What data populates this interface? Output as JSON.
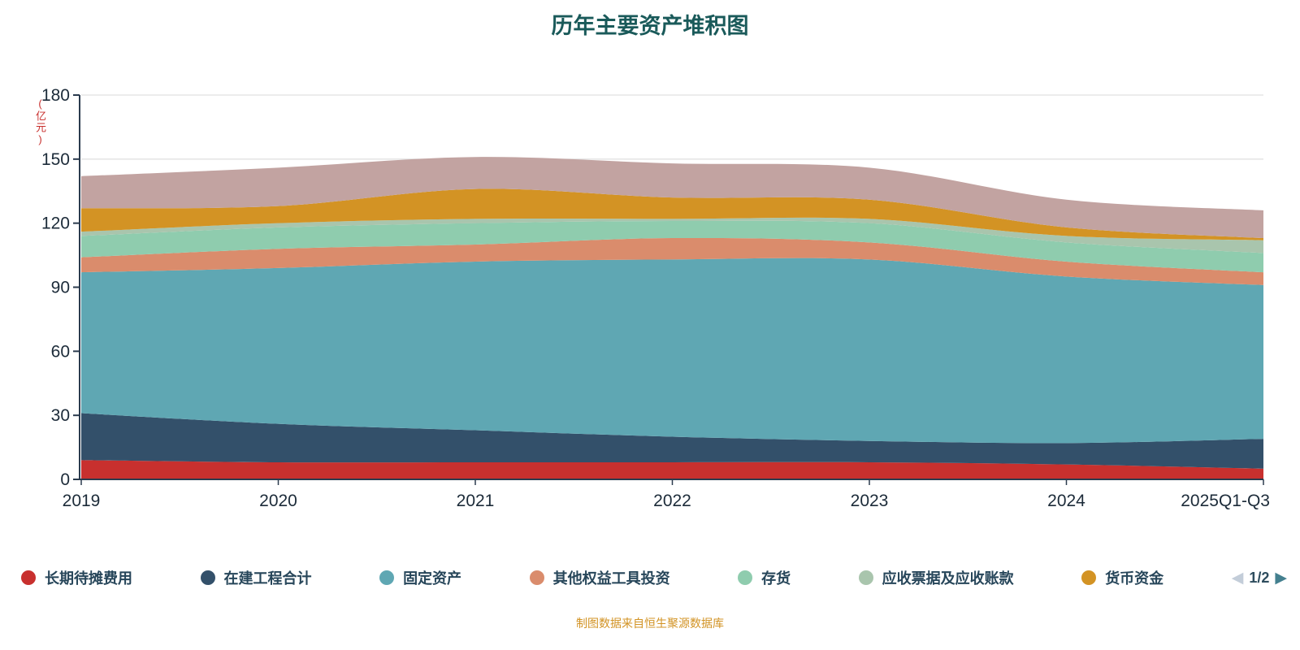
{
  "title": "历年主要资产堆积图",
  "caption": "制图数据来自恒生聚源数据库",
  "y_axis": {
    "name": "(亿元)",
    "ticks": [
      0,
      30,
      60,
      90,
      120,
      150,
      180
    ]
  },
  "legend": {
    "pagination": {
      "current": "1/2"
    }
  },
  "colors": {
    "title": "#1a5a5a",
    "axis_label": "#1c2b39",
    "axis_line": "#2b3b4e",
    "grid_line": "#d8d8d8",
    "caption": "#d29324",
    "y_axis_name": "#c8302e",
    "legend_text": "#27465a",
    "pager_prev": "#c3cdd9",
    "pager_next": "#44808f",
    "pager_text": "#2e4d5e"
  },
  "chart_data": {
    "type": "area",
    "stacked": true,
    "title": "历年主要资产堆积图",
    "ylabel": "(亿元)",
    "xlabel": "",
    "ylim": [
      0,
      180
    ],
    "yticks": [
      0,
      30,
      60,
      90,
      120,
      150,
      180
    ],
    "grid": true,
    "legend_position": "bottom",
    "categories": [
      "2019",
      "2020",
      "2021",
      "2022",
      "2023",
      "2024",
      "2025Q1-Q3"
    ],
    "series": [
      {
        "name": "长期待摊费用",
        "color": "#c8302e",
        "in_legend": true,
        "values": [
          9,
          8,
          8,
          8,
          8,
          7,
          5
        ]
      },
      {
        "name": "在建工程合计",
        "color": "#33506a",
        "in_legend": true,
        "values": [
          22,
          18,
          15,
          12,
          10,
          10,
          14
        ]
      },
      {
        "name": "固定资产",
        "color": "#5fa7b3",
        "in_legend": true,
        "values": [
          66,
          73,
          79,
          83,
          85,
          78,
          72
        ]
      },
      {
        "name": "其他权益工具投资",
        "color": "#da8c6c",
        "in_legend": true,
        "values": [
          7,
          9,
          8,
          10,
          8,
          7,
          6
        ]
      },
      {
        "name": "存货",
        "color": "#8fccae",
        "in_legend": true,
        "values": [
          10,
          10,
          10,
          8,
          9,
          9,
          9
        ]
      },
      {
        "name": "应收票据及应收账款",
        "color": "#a9c5ad",
        "in_legend": true,
        "values": [
          2,
          2,
          2,
          1,
          2,
          3,
          6
        ]
      },
      {
        "name": "货币资金",
        "color": "#d39324",
        "in_legend": true,
        "values": [
          11,
          8,
          14,
          10,
          9,
          4,
          1
        ]
      },
      {
        "name": "",
        "color": "#c2a3a1",
        "in_legend": false,
        "values": [
          15,
          18,
          15,
          16,
          15,
          13,
          13
        ]
      }
    ]
  }
}
